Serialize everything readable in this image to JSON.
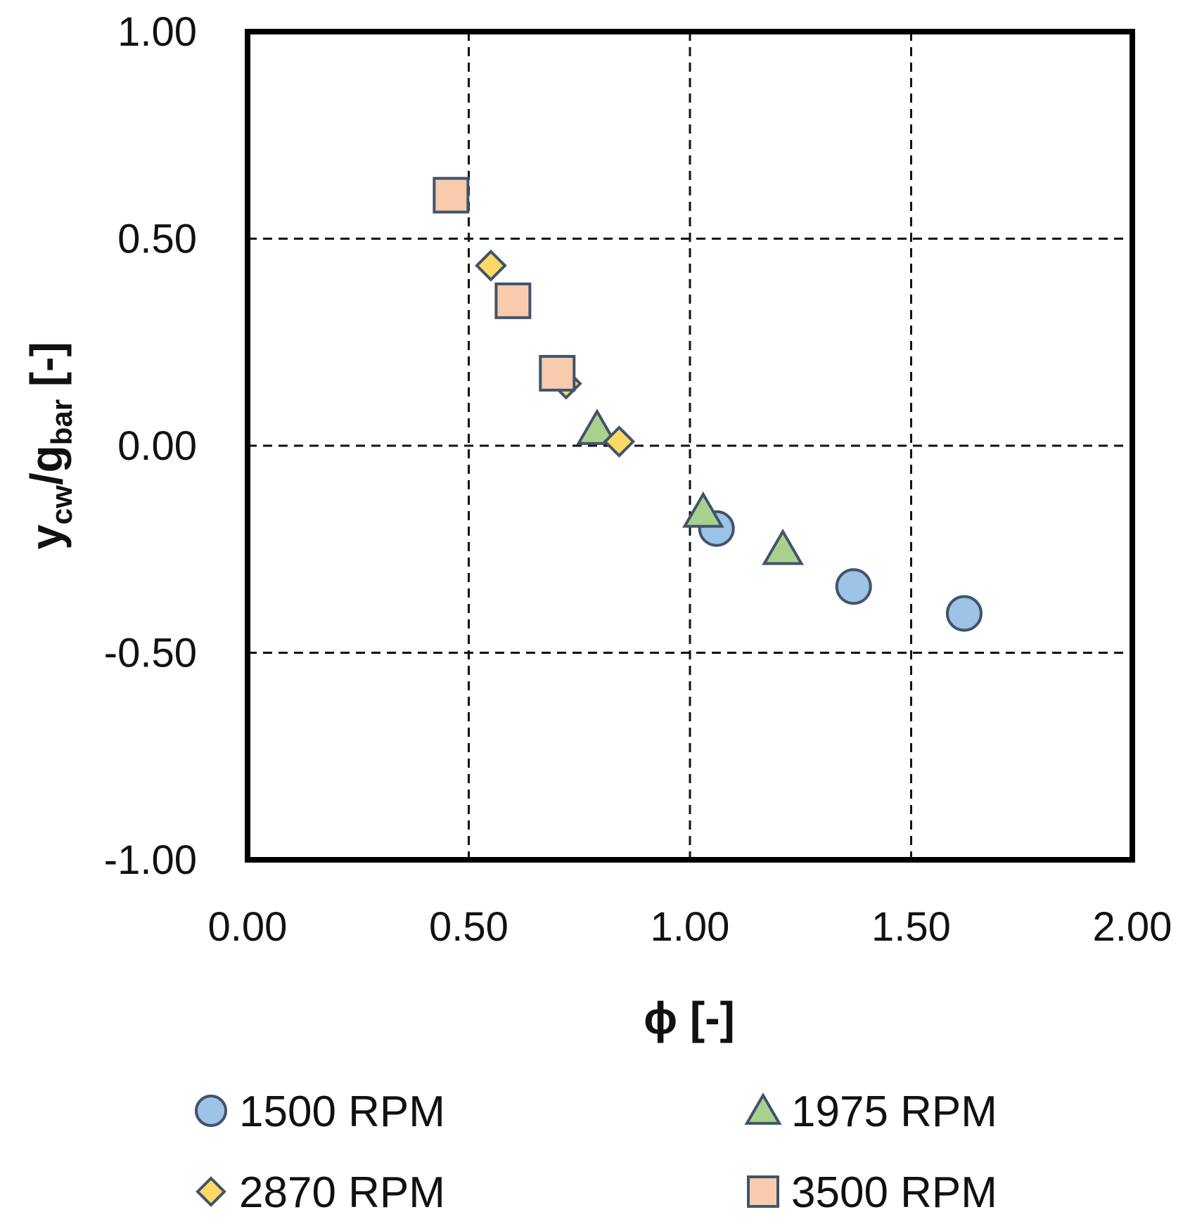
{
  "chart_data": {
    "type": "scatter",
    "xlabel": "ϕ [-]",
    "ylabel": {
      "main": "y",
      "sub1": "cw",
      "slash": "/g",
      "sub2": "bar",
      "unit": " [-]"
    },
    "xlim": [
      0,
      2
    ],
    "ylim": [
      -1,
      1
    ],
    "x_ticks": [
      "0.00",
      "0.50",
      "1.00",
      "1.50",
      "2.00"
    ],
    "y_ticks": [
      "1.00",
      "0.50",
      "0.00",
      "-0.50",
      "-1.00"
    ],
    "grid": true,
    "grid_style": "dashed",
    "legend_position": "bottom",
    "series": [
      {
        "name": "1500 RPM",
        "marker": "circle",
        "color": "#9DC3E6",
        "points": [
          [
            1.06,
            -0.2
          ],
          [
            1.37,
            -0.34
          ],
          [
            1.62,
            -0.405
          ]
        ]
      },
      {
        "name": "1975 RPM",
        "marker": "triangle",
        "color": "#A9D18E",
        "points": [
          [
            0.79,
            0.04
          ],
          [
            1.03,
            -0.16
          ],
          [
            1.21,
            -0.25
          ]
        ]
      },
      {
        "name": "2870 RPM",
        "marker": "diamond",
        "color": "#FFD966",
        "points": [
          [
            0.55,
            0.435
          ],
          [
            0.72,
            0.15
          ],
          [
            0.84,
            0.01
          ]
        ]
      },
      {
        "name": "3500 RPM",
        "marker": "square",
        "color": "#F8CBAD",
        "points": [
          [
            0.46,
            0.605
          ],
          [
            0.6,
            0.35
          ],
          [
            0.7,
            0.175
          ]
        ]
      }
    ]
  },
  "colors": {
    "marker_edge": "#41546B",
    "axis": "#000000",
    "grid": "#111111"
  }
}
